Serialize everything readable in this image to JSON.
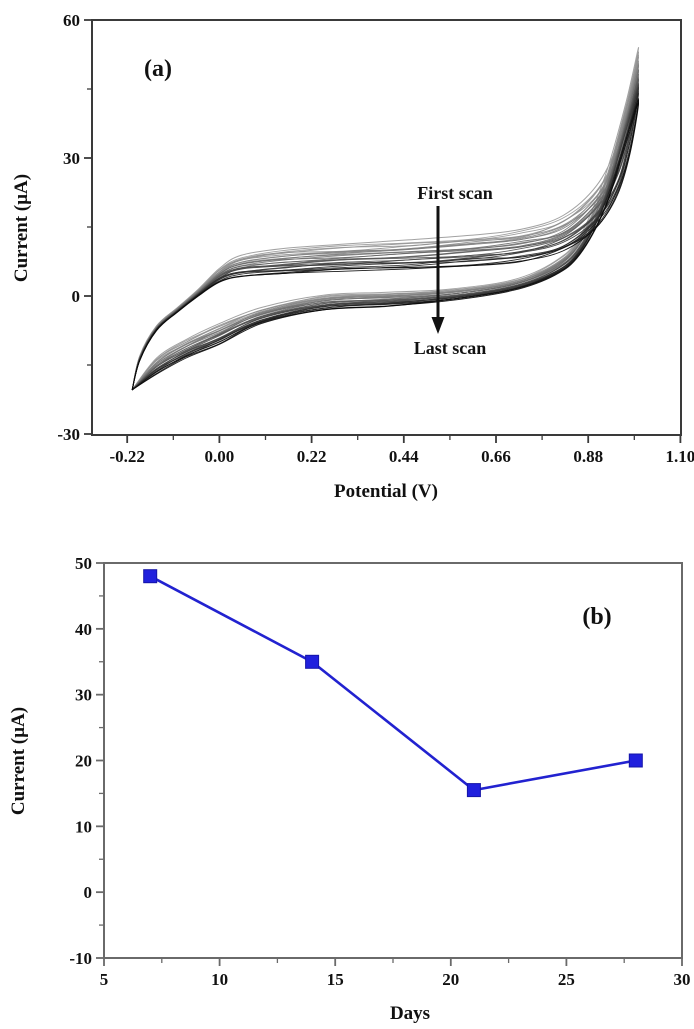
{
  "figure_background": "#ffffff",
  "panel_a_axis_color": "#3a3a3a",
  "panel_b_axis_color": "#6a6a6a",
  "chart_data": [
    {
      "type": "line",
      "panel_label": "(a)",
      "xlabel": "Potential (V)",
      "ylabel": "Current (µA)",
      "xlim": [
        -0.304,
        1.1
      ],
      "ylim": [
        -30.2,
        60
      ],
      "x_tick_values": [
        -0.22,
        0.0,
        0.22,
        0.44,
        0.66,
        0.88,
        1.1
      ],
      "x_tick_labels": [
        "-0.22",
        "0.00",
        "0.22",
        "0.44",
        "0.66",
        "0.88",
        "1.10"
      ],
      "x_minor_tick_values": [
        -0.11,
        0.11,
        0.33,
        0.55,
        0.77,
        0.99
      ],
      "y_tick_values": [
        -30,
        0,
        30,
        60
      ],
      "y_tick_labels": [
        "-30",
        "0",
        "30",
        "60"
      ],
      "y_minor_tick_values": [
        -15,
        15,
        45
      ],
      "grid": false,
      "legend": "none",
      "n_scans": 26,
      "scan_color_first": "#9a9a9a",
      "scan_color_last": "#0a0a0a",
      "annotations": [
        {
          "name": "first-scan",
          "text": "First scan"
        },
        {
          "name": "last-scan",
          "text": "Last scan"
        }
      ],
      "arrow": {
        "direction": "down",
        "meaning": "current decreases from first to last scan"
      },
      "series": [
        {
          "name": "first scan",
          "x": [
            -0.208,
            -0.19,
            -0.15,
            -0.1,
            -0.05,
            0.0,
            0.05,
            0.15,
            0.3,
            0.45,
            0.6,
            0.72,
            0.82,
            0.9,
            0.95,
            0.98,
            1.0,
            0.97,
            0.92,
            0.86,
            0.8,
            0.7,
            0.55,
            0.4,
            0.25,
            0.1,
            0.0,
            -0.08,
            -0.15,
            -0.208
          ],
          "y": [
            -20.4,
            -13.0,
            -6.5,
            -2.5,
            1.5,
            6.0,
            8.8,
            10.3,
            11.3,
            12.2,
            13.2,
            14.5,
            17.5,
            24.0,
            33.0,
            44.0,
            54.0,
            42.0,
            26.0,
            13.0,
            7.5,
            3.5,
            1.5,
            0.8,
            0.2,
            -2.5,
            -6.0,
            -9.5,
            -13.5,
            -20.4
          ]
        },
        {
          "name": "last scan",
          "x": [
            -0.208,
            -0.19,
            -0.15,
            -0.1,
            -0.05,
            0.0,
            0.05,
            0.15,
            0.3,
            0.45,
            0.6,
            0.72,
            0.82,
            0.9,
            0.95,
            0.98,
            1.0,
            0.97,
            0.92,
            0.86,
            0.8,
            0.7,
            0.55,
            0.4,
            0.25,
            0.1,
            0.0,
            -0.08,
            -0.15,
            -0.208
          ],
          "y": [
            -20.4,
            -14.0,
            -7.5,
            -3.5,
            0.0,
            3.0,
            4.2,
            4.9,
            5.4,
            5.9,
            6.6,
            7.6,
            9.8,
            15.0,
            22.0,
            31.0,
            42.0,
            33.0,
            19.0,
            9.0,
            4.5,
            1.2,
            -1.0,
            -2.2,
            -3.0,
            -6.0,
            -10.5,
            -13.5,
            -17.0,
            -20.4
          ]
        }
      ]
    },
    {
      "type": "line",
      "panel_label": "(b)",
      "xlabel": "Days",
      "ylabel": "Current (µA)",
      "xlim": [
        5,
        30
      ],
      "ylim": [
        -10,
        50
      ],
      "x_tick_values": [
        5,
        10,
        15,
        20,
        25,
        30
      ],
      "x_tick_labels": [
        "5",
        "10",
        "15",
        "20",
        "25",
        "30"
      ],
      "x_minor_tick_values": [
        7.5,
        12.5,
        17.5,
        22.5,
        27.5
      ],
      "y_tick_values": [
        -10,
        0,
        10,
        20,
        30,
        40,
        50
      ],
      "y_tick_labels": [
        "-10",
        "0",
        "10",
        "20",
        "30",
        "40",
        "50"
      ],
      "y_minor_tick_values": [
        -5,
        5,
        15,
        25,
        35,
        45
      ],
      "grid": false,
      "legend": "none",
      "line_color": "#2222d0",
      "marker": "square",
      "marker_color": "#2020dd",
      "x": [
        7,
        14,
        21,
        28
      ],
      "y": [
        48,
        35,
        15.5,
        20
      ]
    }
  ]
}
